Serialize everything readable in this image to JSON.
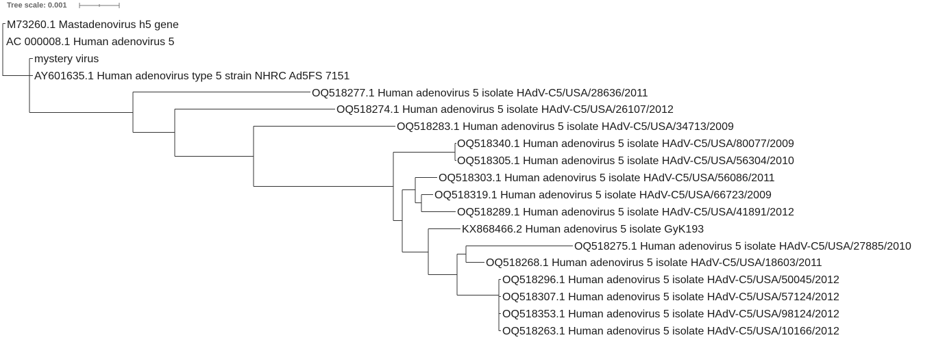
{
  "tree_scale": {
    "label": "Tree scale: 0.001"
  },
  "leaves": [
    {
      "id": "L1",
      "label": "M73260.1 Mastadenovirus h5 gene"
    },
    {
      "id": "L2",
      "label": "AC 000008.1 Human adenovirus 5"
    },
    {
      "id": "L3",
      "label": "mystery virus"
    },
    {
      "id": "L4",
      "label": "AY601635.1 Human adenovirus type 5 strain NHRC Ad5FS 7151"
    },
    {
      "id": "L5",
      "label": "OQ518277.1 Human adenovirus 5 isolate HAdV-C5/USA/28636/2011"
    },
    {
      "id": "L6",
      "label": "OQ518274.1 Human adenovirus 5 isolate HAdV-C5/USA/26107/2012"
    },
    {
      "id": "L7",
      "label": "OQ518283.1 Human adenovirus 5 isolate HAdV-C5/USA/34713/2009"
    },
    {
      "id": "L8",
      "label": "OQ518340.1 Human adenovirus 5 isolate HAdV-C5/USA/80077/2009"
    },
    {
      "id": "L9",
      "label": "OQ518305.1 Human adenovirus 5 isolate HAdV-C5/USA/56304/2010"
    },
    {
      "id": "L10",
      "label": "OQ518303.1 Human adenovirus 5 isolate HAdV-C5/USA/56086/2011"
    },
    {
      "id": "L11",
      "label": "OQ518319.1 Human adenovirus 5 isolate HAdV-C5/USA/66723/2009"
    },
    {
      "id": "L12",
      "label": "OQ518289.1 Human adenovirus 5 isolate HAdV-C5/USA/41891/2012"
    },
    {
      "id": "L13",
      "label": "KX868466.2 Human adenovirus 5 isolate GyK193"
    },
    {
      "id": "L14",
      "label": "OQ518275.1 Human adenovirus 5 isolate HAdV-C5/USA/27885/2010"
    },
    {
      "id": "L15",
      "label": "OQ518268.1 Human adenovirus 5 isolate HAdV-C5/USA/18603/2011"
    },
    {
      "id": "L16",
      "label": "OQ518296.1 Human adenovirus 5 isolate HAdV-C5/USA/50045/2012"
    },
    {
      "id": "L17",
      "label": "OQ518307.1 Human adenovirus 5 isolate HAdV-C5/USA/57124/2012"
    },
    {
      "id": "L18",
      "label": "OQ518353.1 Human adenovirus 5 isolate HAdV-C5/USA/98124/2012"
    },
    {
      "id": "L19",
      "label": "OQ518263.1 Human adenovirus 5 isolate HAdV-C5/USA/10166/2012"
    }
  ]
}
